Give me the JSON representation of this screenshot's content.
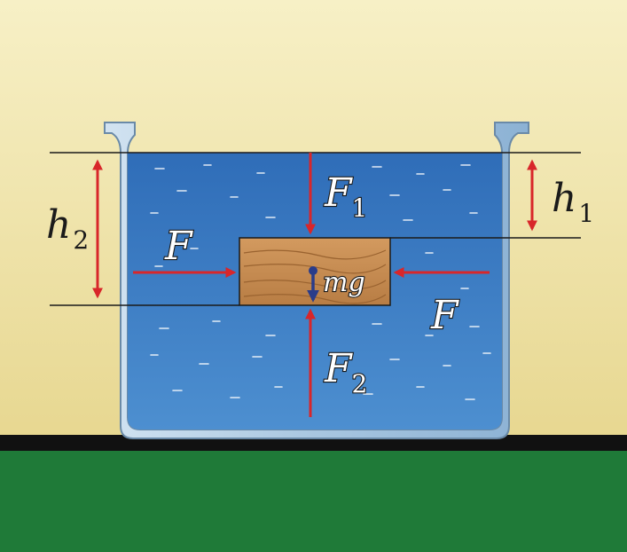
{
  "diagram": {
    "labels": {
      "h1_main": "h",
      "h1_sub": "1",
      "h2_main": "h",
      "h2_sub": "2",
      "F_left": "F",
      "F_right": "F",
      "F1_main": "F",
      "F1_sub": "1",
      "F2_main": "F",
      "F2_sub": "2",
      "mg": "mg"
    },
    "colors": {
      "background_top": "#f7f0c6",
      "background_bottom": "#e7d790",
      "ground": "#1f7a38",
      "ground_line": "#111111",
      "water_top": "#2f6db8",
      "water_bottom": "#4d8fd0",
      "vessel": "#a8c6e0",
      "block": "#c98e52",
      "arrow_red": "#d8262a",
      "arrow_blue": "#2a3c8a"
    }
  }
}
